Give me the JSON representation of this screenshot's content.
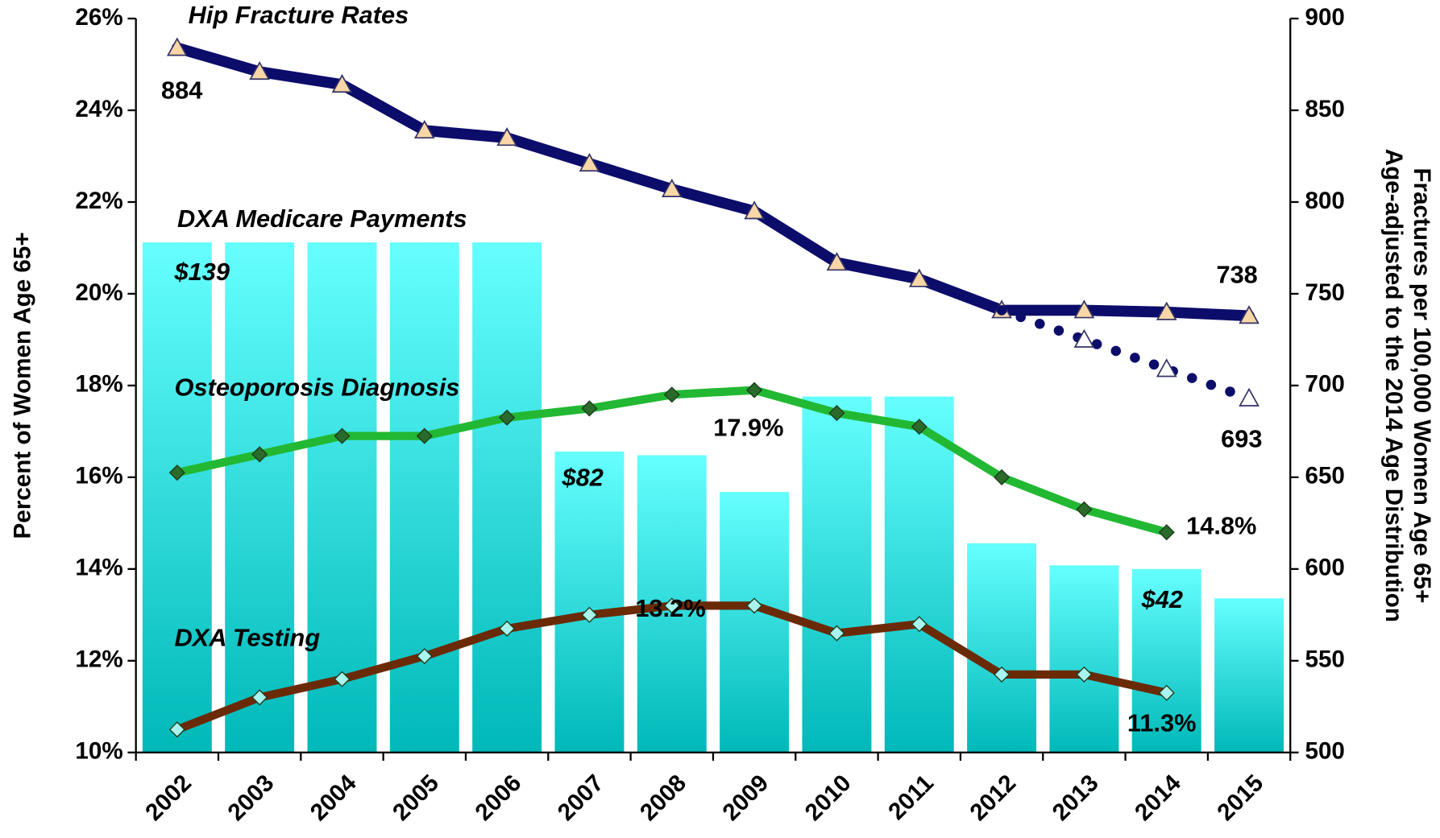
{
  "chart_data": {
    "type": "combo",
    "y_label": "Percent of Women Age 65+",
    "y2_label": [
      "Fractures per 100,000 Women Age 65+",
      "Age-adjusted to the 2014 Age Distribution"
    ],
    "categories": [
      "2002",
      "2003",
      "2004",
      "2005",
      "2006",
      "2007",
      "2008",
      "2009",
      "2010",
      "2011",
      "2012",
      "2013",
      "2014",
      "2015"
    ],
    "ylim": [
      10,
      26
    ],
    "yticks": [
      {
        "value": 10,
        "label": "10%"
      },
      {
        "value": 12,
        "label": "12%"
      },
      {
        "value": 14,
        "label": "14%"
      },
      {
        "value": 16,
        "label": "16%"
      },
      {
        "value": 18,
        "label": "18%"
      },
      {
        "value": 20,
        "label": "20%"
      },
      {
        "value": 22,
        "label": "22%"
      },
      {
        "value": 24,
        "label": "24%"
      },
      {
        "value": 26,
        "label": "26%"
      }
    ],
    "y2lim": [
      500,
      900
    ],
    "y2ticks": [
      500,
      550,
      600,
      650,
      700,
      750,
      800,
      850,
      900
    ],
    "y3lim": [
      0,
      200
    ],
    "series": [
      {
        "name": "DXA Medicare Payments",
        "type": "bar",
        "axis": "y3",
        "color": "#33e0e0",
        "values": [
          139,
          139,
          139,
          139,
          139,
          82,
          81,
          71,
          97,
          97,
          57,
          51,
          50,
          42
        ],
        "value_labels": [
          "$139",
          null,
          null,
          null,
          null,
          "$82",
          null,
          null,
          null,
          null,
          null,
          null,
          null,
          "$42"
        ]
      },
      {
        "name": "Hip Fracture Rates",
        "type": "line",
        "axis": "y2",
        "color": "#0c0c6b",
        "marker": "triangle",
        "marker_color": "#f9d6a6",
        "values": [
          884,
          871,
          864,
          839,
          835,
          821,
          807,
          795,
          767,
          758,
          741,
          741,
          740,
          738
        ],
        "value_labels": [
          "884",
          null,
          null,
          null,
          null,
          null,
          null,
          null,
          null,
          null,
          null,
          null,
          null,
          "738"
        ]
      },
      {
        "type": "line",
        "axis": "y2",
        "color": "#0c0c6b",
        "marker": "triangle",
        "marker_color": "#ffffff",
        "dotted": true,
        "values": [
          null,
          null,
          null,
          null,
          null,
          null,
          null,
          null,
          null,
          null,
          741,
          725,
          709,
          693
        ],
        "value_labels": [
          null,
          null,
          null,
          null,
          null,
          null,
          null,
          null,
          null,
          null,
          null,
          null,
          null,
          "693"
        ]
      },
      {
        "name": "Osteoporosis Diagnosis",
        "type": "line",
        "axis": "y",
        "color": "#22b833",
        "marker": "diamond",
        "marker_color": "#2a6a2a",
        "values": [
          16.1,
          16.5,
          16.9,
          16.9,
          17.3,
          17.5,
          17.8,
          17.9,
          17.4,
          17.1,
          16.0,
          15.3,
          14.8,
          null
        ],
        "value_labels": [
          null,
          null,
          null,
          null,
          null,
          null,
          null,
          "17.9%",
          null,
          null,
          null,
          null,
          "14.8%",
          null
        ]
      },
      {
        "name": "DXA Testing",
        "type": "line",
        "axis": "y",
        "color": "#6b2a06",
        "marker": "diamond",
        "marker_color": "#a8f4ee",
        "values": [
          10.5,
          11.2,
          11.6,
          12.1,
          12.7,
          13.0,
          13.2,
          13.2,
          12.6,
          12.8,
          11.7,
          11.7,
          11.3,
          null
        ],
        "value_labels": [
          null,
          null,
          null,
          null,
          null,
          null,
          "13.2%",
          null,
          null,
          null,
          null,
          null,
          "11.3%",
          null
        ]
      }
    ]
  }
}
